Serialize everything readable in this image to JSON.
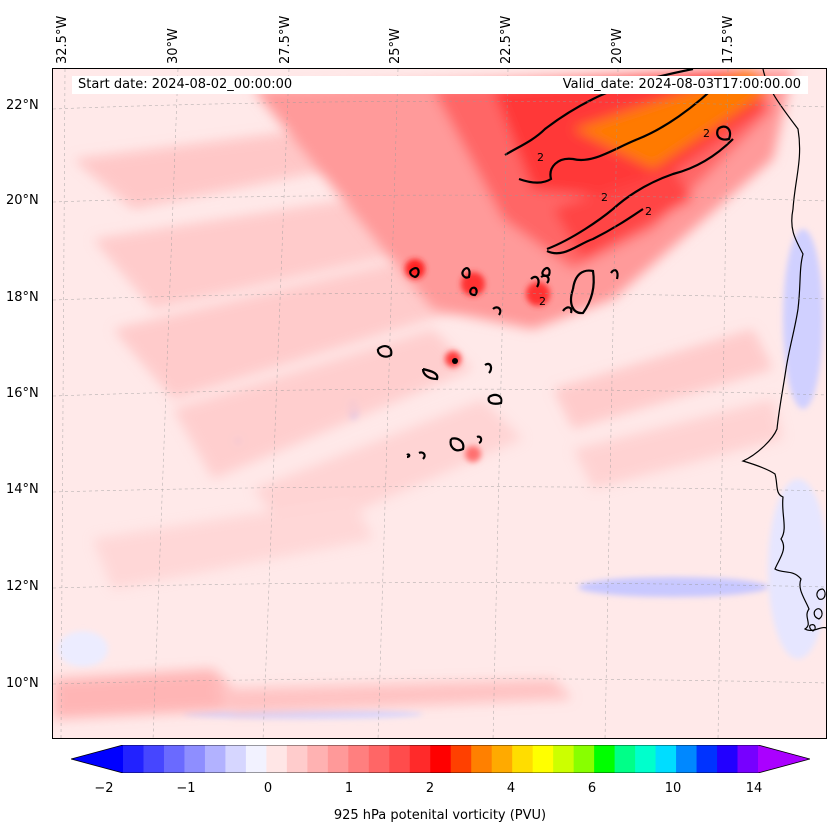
{
  "header": {
    "start_date": "Start date: 2024-08-02_00:00:00",
    "valid_date": "Valid_date: 2024-08-03T17:00:00.00"
  },
  "axes": {
    "lon_labels": [
      "32.5°W",
      "30°W",
      "27.5°W",
      "25°W",
      "22.5°W",
      "20°W",
      "17.5°W"
    ],
    "lat_labels": [
      "22°N",
      "20°N",
      "18°N",
      "16°N",
      "14°N",
      "12°N",
      "10°N"
    ]
  },
  "map": {
    "field": "925 hPa potential vorticity",
    "contour_level": "2",
    "contour_labels": [
      "2",
      "2",
      "2",
      "2",
      "2"
    ],
    "colors": {
      "background": "#ffe9e9",
      "light_pink": "#ffc8c8",
      "pink": "#ff9c9c",
      "red": "#ff5050",
      "bright_red": "#ff1a1a",
      "orange": "#ff7f00",
      "blue_light": "#d8d8ff",
      "blue": "#a8a8ff",
      "coast": "#000000"
    }
  },
  "colorbar": {
    "ticks": [
      "−2",
      "−1",
      "0",
      "1",
      "2",
      "4",
      "6",
      "10",
      "14"
    ],
    "label": "925 hPa potenital vorticity (PVU)",
    "colors": [
      "#0000ff",
      "#2222ff",
      "#4646ff",
      "#6a6aff",
      "#8e8eff",
      "#b2b2ff",
      "#d6d6ff",
      "#f2f2ff",
      "#ffe6e6",
      "#ffcccc",
      "#ffb2b2",
      "#ff9999",
      "#ff7f7f",
      "#ff6666",
      "#ff4c4c",
      "#ff2a2a",
      "#ff0000",
      "#ff4000",
      "#ff8000",
      "#ffaa00",
      "#ffdd00",
      "#ffff00",
      "#ccff00",
      "#88ff00",
      "#00ff00",
      "#00ff88",
      "#00ffcc",
      "#00ddff",
      "#0088ff",
      "#0033ff",
      "#2200ff",
      "#7700ff",
      "#aa00ff"
    ]
  }
}
